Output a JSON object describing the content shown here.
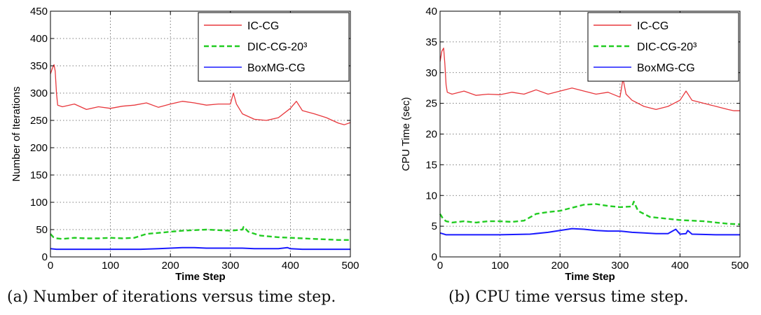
{
  "chart_data": [
    {
      "type": "line",
      "xlabel": "Time Step",
      "ylabel": "Number of Iterations",
      "xlim": [
        0,
        500
      ],
      "ylim": [
        0,
        450
      ],
      "xticks": [
        "0",
        "100",
        "200",
        "300",
        "400",
        "500"
      ],
      "yticks": [
        "0",
        "50",
        "100",
        "150",
        "200",
        "250",
        "300",
        "350",
        "400",
        "450"
      ],
      "grid": true,
      "legend_position": "top-right",
      "caption": "(a) Number of iterations versus time step.",
      "series": [
        {
          "name": "IC-CG",
          "color": "#e8383d",
          "style": "solid",
          "x": [
            0,
            3,
            6,
            8,
            10,
            12,
            20,
            40,
            60,
            80,
            100,
            120,
            140,
            160,
            180,
            200,
            220,
            240,
            260,
            280,
            300,
            305,
            310,
            320,
            340,
            360,
            380,
            400,
            410,
            420,
            440,
            460,
            480,
            490,
            500
          ],
          "y": [
            335,
            345,
            352,
            340,
            300,
            278,
            275,
            280,
            270,
            275,
            272,
            276,
            278,
            282,
            274,
            280,
            285,
            282,
            278,
            280,
            280,
            300,
            280,
            262,
            252,
            250,
            255,
            272,
            285,
            268,
            262,
            255,
            245,
            242,
            246
          ]
        },
        {
          "name": "DIC-CG-20³",
          "color": "#22cc22",
          "style": "dashed",
          "x": [
            0,
            5,
            10,
            20,
            40,
            60,
            80,
            100,
            120,
            140,
            160,
            180,
            200,
            220,
            240,
            260,
            280,
            300,
            320,
            322,
            330,
            350,
            380,
            400,
            420,
            440,
            460,
            480,
            500
          ],
          "y": [
            42,
            36,
            34,
            33,
            35,
            34,
            34,
            35,
            34,
            35,
            42,
            44,
            46,
            48,
            49,
            50,
            49,
            48,
            50,
            55,
            46,
            39,
            36,
            35,
            34,
            33,
            32,
            31,
            31
          ]
        },
        {
          "name": "BoxMG-CG",
          "color": "#1a1aff",
          "style": "solid",
          "x": [
            0,
            10,
            50,
            100,
            150,
            180,
            200,
            220,
            240,
            260,
            280,
            300,
            320,
            340,
            360,
            380,
            395,
            400,
            420,
            460,
            500
          ],
          "y": [
            15,
            14,
            14,
            14,
            14,
            15,
            16,
            17,
            17,
            16,
            16,
            16,
            16,
            15,
            15,
            15,
            17,
            15,
            14,
            14,
            14
          ]
        }
      ]
    },
    {
      "type": "line",
      "xlabel": "Time Step",
      "ylabel": "CPU Time (sec)",
      "xlim": [
        0,
        500
      ],
      "ylim": [
        0,
        40
      ],
      "xticks": [
        "0",
        "100",
        "200",
        "300",
        "400",
        "500"
      ],
      "yticks": [
        "0",
        "5",
        "10",
        "15",
        "20",
        "25",
        "30",
        "35",
        "40"
      ],
      "grid": true,
      "legend_position": "top-right",
      "caption": "(b) CPU time versus time step.",
      "series": [
        {
          "name": "IC-CG",
          "color": "#e8383d",
          "style": "solid",
          "x": [
            0,
            3,
            6,
            8,
            10,
            12,
            20,
            40,
            60,
            80,
            100,
            120,
            140,
            160,
            180,
            200,
            220,
            240,
            260,
            280,
            300,
            305,
            310,
            320,
            340,
            360,
            380,
            400,
            410,
            420,
            440,
            460,
            480,
            490,
            500
          ],
          "y": [
            31.8,
            33.5,
            34.0,
            31.5,
            28.0,
            26.8,
            26.5,
            27.0,
            26.3,
            26.5,
            26.4,
            26.8,
            26.5,
            27.2,
            26.5,
            27.0,
            27.5,
            27.0,
            26.5,
            26.8,
            26.0,
            29.0,
            26.5,
            25.5,
            24.5,
            24.0,
            24.5,
            25.5,
            27.0,
            25.5,
            25.0,
            24.5,
            24.0,
            23.8,
            23.8
          ]
        },
        {
          "name": "DIC-CG-20³",
          "color": "#22cc22",
          "style": "dashed",
          "x": [
            0,
            5,
            10,
            20,
            40,
            60,
            80,
            100,
            120,
            140,
            160,
            180,
            200,
            220,
            240,
            260,
            280,
            300,
            320,
            323,
            330,
            350,
            380,
            400,
            420,
            440,
            460,
            480,
            500
          ],
          "y": [
            7.0,
            6.2,
            5.8,
            5.6,
            5.8,
            5.6,
            5.8,
            5.8,
            5.7,
            5.9,
            7.0,
            7.3,
            7.5,
            8.0,
            8.5,
            8.6,
            8.3,
            8.1,
            8.2,
            9.0,
            7.5,
            6.5,
            6.2,
            6.0,
            5.9,
            5.8,
            5.6,
            5.4,
            5.3
          ]
        },
        {
          "name": "BoxMG-CG",
          "color": "#1a1aff",
          "style": "solid",
          "x": [
            0,
            10,
            50,
            100,
            150,
            180,
            200,
            220,
            240,
            260,
            280,
            300,
            320,
            340,
            360,
            380,
            393,
            400,
            410,
            413,
            420,
            460,
            500
          ],
          "y": [
            3.9,
            3.6,
            3.6,
            3.6,
            3.7,
            4.0,
            4.3,
            4.6,
            4.5,
            4.3,
            4.2,
            4.2,
            4.0,
            3.9,
            3.8,
            3.8,
            4.5,
            3.7,
            3.8,
            4.3,
            3.7,
            3.6,
            3.6
          ]
        }
      ]
    }
  ]
}
